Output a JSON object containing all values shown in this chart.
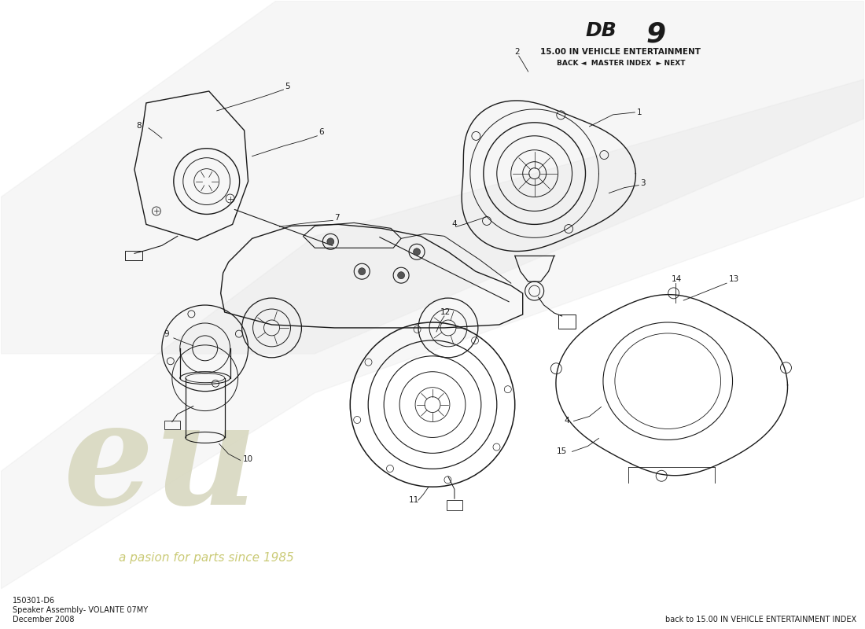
{
  "title_db": "DB",
  "title_9": "9",
  "subtitle": "15.00 IN VEHICLE ENTERTAINMENT",
  "nav_text": "BACK ◄  MASTER INDEX  ► NEXT",
  "footer_left_line1": "150301-D6",
  "footer_left_line2": "Speaker Assembly- VOLANTE 07MY",
  "footer_left_line3": "December 2008",
  "footer_right": "back to 15.00 IN VEHICLE ENTERTAINMENT INDEX",
  "bg_color": "#ffffff",
  "line_color": "#1a1a1a",
  "wm_eu_color": "#d8d8c0",
  "wm_text_color": "#c8c870",
  "wm_stripe_color": "#e0e0e0"
}
